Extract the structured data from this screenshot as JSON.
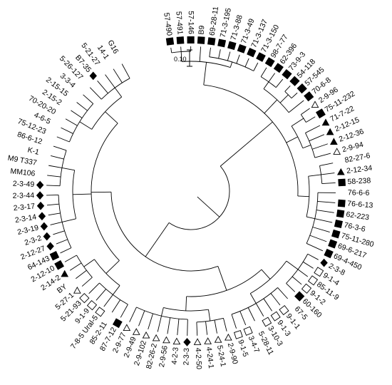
{
  "scale": {
    "label": "0.10"
  },
  "leaves": [
    {
      "label": "57-490",
      "marker": "square-filled"
    },
    {
      "label": "57-491",
      "marker": "square-filled"
    },
    {
      "label": "57-146",
      "marker": "square-filled"
    },
    {
      "label": "B9",
      "marker": "square-filled"
    },
    {
      "label": "69-28-11",
      "marker": "square-filled"
    },
    {
      "label": "71-3-195",
      "marker": "square-filled"
    },
    {
      "label": "71-3-88",
      "marker": "square-filled"
    },
    {
      "label": "71-3-49",
      "marker": "square-filled"
    },
    {
      "label": "71-3-137",
      "marker": "square-filled"
    },
    {
      "label": "71-3-150",
      "marker": "square-filled"
    },
    {
      "label": "98-7-77",
      "marker": "square-filled"
    },
    {
      "label": "62-396",
      "marker": "square-filled"
    },
    {
      "label": "73-9-3",
      "marker": "square-filled"
    },
    {
      "label": "54-118",
      "marker": "square-filled"
    },
    {
      "label": "57-545",
      "marker": "square-filled"
    },
    {
      "label": "70-6-8",
      "marker": "square-filled"
    },
    {
      "label": "2-9-96",
      "marker": "triangle-open"
    },
    {
      "label": "75-11-232",
      "marker": "square-filled"
    },
    {
      "label": "71-7-22",
      "marker": "triangle-filled"
    },
    {
      "label": "2-12-15",
      "marker": "triangle-filled"
    },
    {
      "label": "2-12-36",
      "marker": "triangle-filled"
    },
    {
      "label": "2-9-94",
      "marker": "triangle-open"
    },
    {
      "label": "82-27-6",
      "marker": "none"
    },
    {
      "label": "2-12-34",
      "marker": "triangle-filled"
    },
    {
      "label": "58-238",
      "marker": "square-filled"
    },
    {
      "label": "76-6-6",
      "marker": "none"
    },
    {
      "label": "76-6-13",
      "marker": "square-filled"
    },
    {
      "label": "62-223",
      "marker": "square-filled"
    },
    {
      "label": "76-3-6",
      "marker": "square-filled"
    },
    {
      "label": "75-11-280",
      "marker": "square-filled"
    },
    {
      "label": "69-6-217",
      "marker": "square-filled"
    },
    {
      "label": "69-4-450",
      "marker": "square-filled"
    },
    {
      "label": "2-3-8",
      "marker": "diamond-filled"
    },
    {
      "label": "9-1-4",
      "marker": "square-open"
    },
    {
      "label": "85-11-9",
      "marker": "square-open"
    },
    {
      "label": "9-1-2",
      "marker": "square-open"
    },
    {
      "label": "60-160",
      "marker": "square-filled"
    },
    {
      "label": "67-5",
      "marker": "none"
    },
    {
      "label": "9-1-1",
      "marker": "square-open"
    },
    {
      "label": "9-1-3",
      "marker": "square-open"
    },
    {
      "label": "3-10-3",
      "marker": "square-open"
    },
    {
      "label": "5-28-11",
      "marker": "none"
    },
    {
      "label": "3-4-7",
      "marker": "square-open"
    },
    {
      "label": "9-1-5",
      "marker": "square-open"
    },
    {
      "label": "2-9-90",
      "marker": "triangle-open"
    },
    {
      "label": "5-24-1",
      "marker": "triangle-open"
    },
    {
      "label": "4-24-1",
      "marker": "triangle-open"
    },
    {
      "label": "4-2-50",
      "marker": "triangle-open"
    },
    {
      "label": "2-3-3",
      "marker": "diamond-filled"
    },
    {
      "label": "4-2-3",
      "marker": "triangle-open"
    },
    {
      "label": "2-9-56",
      "marker": "triangle-open"
    },
    {
      "label": "82-26-2",
      "marker": "triangle-open"
    },
    {
      "label": "2-9-102",
      "marker": "triangle-open"
    },
    {
      "label": "2-9-49",
      "marker": "triangle-open"
    },
    {
      "label": "2-9-77",
      "marker": "triangle-open"
    },
    {
      "label": "87-7-12",
      "marker": "square-filled"
    },
    {
      "label": "85-2-11",
      "marker": "none"
    },
    {
      "label": "7-8-5 Ural-5",
      "marker": "square-open"
    },
    {
      "label": "9-1-9",
      "marker": "square-open"
    },
    {
      "label": "5-21-93",
      "marker": "square-open"
    },
    {
      "label": "5-27-1",
      "marker": "triangle-open"
    },
    {
      "label": "BY",
      "marker": "none"
    },
    {
      "label": "2-14-2",
      "marker": "triangle-filled"
    },
    {
      "label": "2-12-10",
      "marker": "square-filled"
    },
    {
      "label": "64-143",
      "marker": "square-filled"
    },
    {
      "label": "2-12-27",
      "marker": "diamond-filled"
    },
    {
      "label": "2-3-2",
      "marker": "diamond-filled"
    },
    {
      "label": "2-3-19",
      "marker": "diamond-filled"
    },
    {
      "label": "2-3-14",
      "marker": "diamond-filled"
    },
    {
      "label": "2-3-17",
      "marker": "diamond-filled"
    },
    {
      "label": "2-3-44",
      "marker": "diamond-filled"
    },
    {
      "label": "2-3-49",
      "marker": "diamond-filled"
    },
    {
      "label": "MM106",
      "marker": "none"
    },
    {
      "label": "M9 T337",
      "marker": "none"
    },
    {
      "label": "K-1",
      "marker": "none"
    },
    {
      "label": "86-6-12",
      "marker": "none"
    },
    {
      "label": "75-12-23",
      "marker": "none"
    },
    {
      "label": "4-6-5",
      "marker": "none"
    },
    {
      "label": "70-20-20",
      "marker": "none"
    },
    {
      "label": "2-15-2",
      "marker": "none"
    },
    {
      "label": "2-15-15",
      "marker": "none"
    },
    {
      "label": "3-3-4",
      "marker": "none"
    },
    {
      "label": "5-26-127",
      "marker": "none"
    },
    {
      "label": "B7-35",
      "marker": "diamond-filled"
    },
    {
      "label": "5-21-27",
      "marker": "none"
    },
    {
      "label": "14-1",
      "marker": "none"
    },
    {
      "label": "G16",
      "marker": "none"
    }
  ]
}
